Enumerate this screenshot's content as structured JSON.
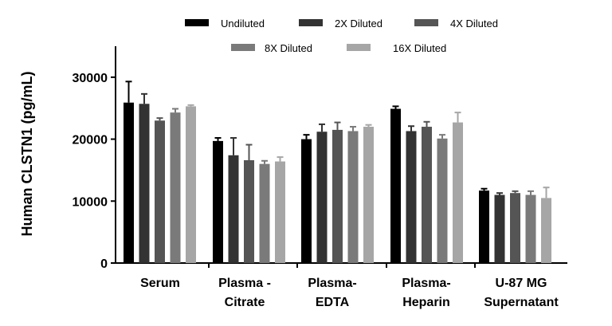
{
  "chart_data": {
    "type": "bar",
    "title": "",
    "xlabel": "",
    "ylabel": "Human CLSTN1 (pg/mL)",
    "ylim": [
      0,
      35000
    ],
    "yticks": [
      0,
      10000,
      20000,
      30000
    ],
    "ytick_labels": [
      "0",
      "10000",
      "20000",
      "30000"
    ],
    "grid": false,
    "legend_position": "top",
    "categories": [
      [
        "Serum"
      ],
      [
        "Plasma -",
        "Citrate"
      ],
      [
        "Plasma-",
        "EDTA"
      ],
      [
        "Plasma-",
        "Heparin"
      ],
      [
        "U-87 MG",
        "Supernatant"
      ]
    ],
    "series": [
      {
        "name": "Undiluted",
        "color": "#000000",
        "values": [
          25900,
          19700,
          20000,
          24900,
          11700
        ],
        "errors": [
          3400,
          500,
          700,
          400,
          300
        ]
      },
      {
        "name": "2X Diluted",
        "color": "#333333",
        "values": [
          25700,
          17400,
          21200,
          21300,
          11000
        ],
        "errors": [
          1600,
          2800,
          1200,
          800,
          300
        ]
      },
      {
        "name": "4X Diluted",
        "color": "#555555",
        "values": [
          23000,
          16600,
          21500,
          22000,
          11300
        ],
        "errors": [
          400,
          2500,
          1200,
          800,
          300
        ]
      },
      {
        "name": "8X Diluted",
        "color": "#7a7a7a",
        "values": [
          24300,
          16000,
          21300,
          20100,
          11000
        ],
        "errors": [
          600,
          500,
          700,
          600,
          600
        ]
      },
      {
        "name": "16X Diluted",
        "color": "#a6a6a6",
        "values": [
          25300,
          16400,
          22000,
          22700,
          10500
        ],
        "errors": [
          200,
          700,
          300,
          1600,
          1700
        ]
      }
    ]
  }
}
